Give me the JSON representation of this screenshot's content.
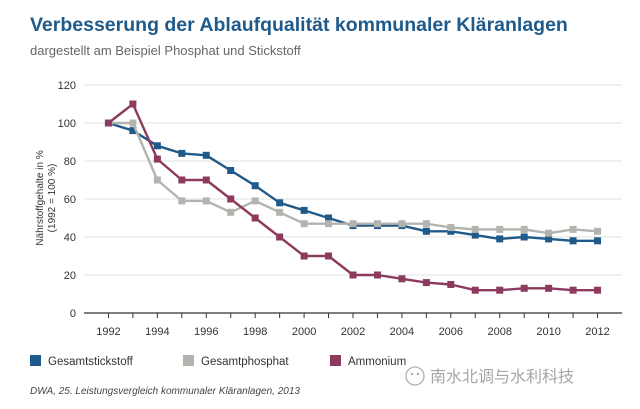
{
  "chart_data": {
    "type": "line",
    "title": "Verbesserung der Ablaufqualität kommunaler Kläranlagen",
    "subtitle": "dargestellt am Beispiel Phosphat und Stickstoff",
    "ylabel_line1": "Nährstoffgehalte in %",
    "ylabel_line2": "(1992 = 100 %)",
    "xlabel": "",
    "ylim": [
      0,
      120
    ],
    "yticks": [
      0,
      20,
      40,
      60,
      80,
      100,
      120
    ],
    "xlim": [
      1991,
      2013
    ],
    "xticks": [
      1992,
      1994,
      1996,
      1998,
      2000,
      2002,
      2004,
      2006,
      2008,
      2010,
      2012
    ],
    "x": [
      1992,
      1993,
      1994,
      1995,
      1996,
      1997,
      1998,
      1999,
      2000,
      2001,
      2002,
      2003,
      2004,
      2005,
      2006,
      2007,
      2008,
      2009,
      2010,
      2011,
      2012
    ],
    "series": [
      {
        "name": "Gesamtstickstoff",
        "color": "#1f5a8a",
        "values": [
          100,
          96,
          88,
          84,
          83,
          75,
          67,
          58,
          54,
          50,
          46,
          46,
          46,
          43,
          43,
          41,
          39,
          40,
          39,
          38,
          38
        ]
      },
      {
        "name": "Gesamtphosphat",
        "color": "#b4b4ae",
        "values": [
          100,
          100,
          70,
          59,
          59,
          53,
          59,
          53,
          47,
          47,
          47,
          47,
          47,
          47,
          45,
          44,
          44,
          44,
          42,
          44,
          43
        ]
      },
      {
        "name": "Ammonium",
        "color": "#8c3a5e",
        "values": [
          100,
          110,
          81,
          70,
          70,
          60,
          50,
          40,
          30,
          30,
          20,
          20,
          18,
          16,
          15,
          12,
          12,
          13,
          13,
          12,
          12
        ]
      }
    ],
    "source": "DWA, 25. Leistungsvergleich kommunaler Kläranlagen, 2013",
    "watermark": "南水北调与水利科技"
  },
  "colors": {
    "title": "#1f5a8a",
    "subtitle": "#666666",
    "axis": "#333333",
    "grid": "#e2e2e2"
  }
}
